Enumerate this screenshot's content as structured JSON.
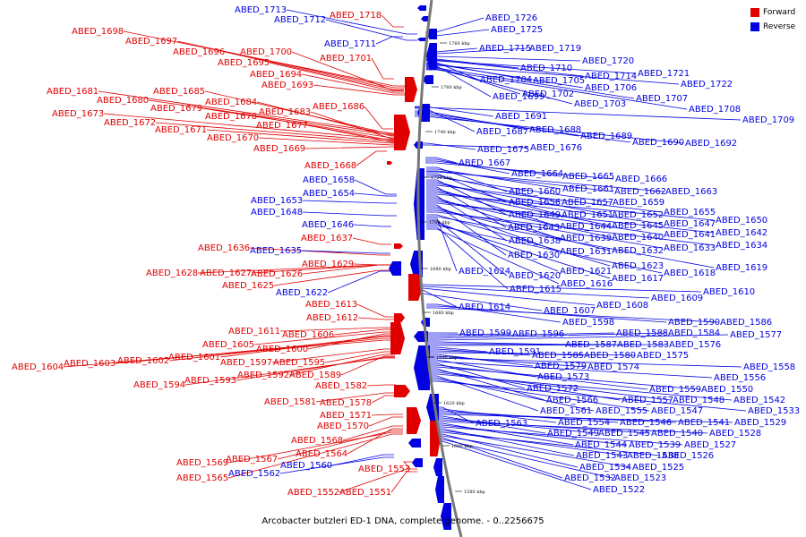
{
  "colors": {
    "forward": "#e00000",
    "reverse": "#0000e0",
    "backbone": "#777777"
  },
  "caption": "Arcobacter butzleri ED-1 DNA, complete genome. - 0..2256675",
  "legend": [
    {
      "label": "Forward",
      "color": "#e00000"
    },
    {
      "label": "Reverse",
      "color": "#0000e0"
    }
  ],
  "ticks": [
    "1760 kbp",
    "1760 kbp",
    "1740 kbp",
    "1720 kbp",
    "1700 kbp",
    "1680 kbp",
    "1660 kbp",
    "1640 kbp",
    "1620 kbp",
    "1600 kbp",
    "1580 kbp"
  ],
  "genes": [
    {
      "id": "ABED_1713",
      "strand": "reverse"
    },
    {
      "id": "ABED_1712",
      "strand": "reverse"
    },
    {
      "id": "ABED_1718",
      "strand": "forward"
    },
    {
      "id": "ABED_1698",
      "strand": "forward"
    },
    {
      "id": "ABED_1697",
      "strand": "forward"
    },
    {
      "id": "ABED_1711",
      "strand": "reverse"
    },
    {
      "id": "ABED_1696",
      "strand": "forward"
    },
    {
      "id": "ABED_1700",
      "strand": "forward"
    },
    {
      "id": "ABED_1695",
      "strand": "forward"
    },
    {
      "id": "ABED_1701",
      "strand": "forward"
    },
    {
      "id": "ABED_1694",
      "strand": "forward"
    },
    {
      "id": "ABED_1693",
      "strand": "forward"
    },
    {
      "id": "ABED_1681",
      "strand": "forward"
    },
    {
      "id": "ABED_1685",
      "strand": "forward"
    },
    {
      "id": "ABED_1680",
      "strand": "forward"
    },
    {
      "id": "ABED_1684",
      "strand": "forward"
    },
    {
      "id": "ABED_1686",
      "strand": "forward"
    },
    {
      "id": "ABED_1679",
      "strand": "forward"
    },
    {
      "id": "ABED_1683",
      "strand": "forward"
    },
    {
      "id": "ABED_1673",
      "strand": "forward"
    },
    {
      "id": "ABED_1678",
      "strand": "forward"
    },
    {
      "id": "ABED_1672",
      "strand": "forward"
    },
    {
      "id": "ABED_1677",
      "strand": "forward"
    },
    {
      "id": "ABED_1671",
      "strand": "forward"
    },
    {
      "id": "ABED_1670",
      "strand": "forward"
    },
    {
      "id": "ABED_1669",
      "strand": "forward"
    },
    {
      "id": "ABED_1668",
      "strand": "forward"
    },
    {
      "id": "ABED_1658",
      "strand": "reverse"
    },
    {
      "id": "ABED_1654",
      "strand": "reverse"
    },
    {
      "id": "ABED_1653",
      "strand": "reverse"
    },
    {
      "id": "ABED_1648",
      "strand": "reverse"
    },
    {
      "id": "ABED_1646",
      "strand": "reverse"
    },
    {
      "id": "ABED_1637",
      "strand": "forward"
    },
    {
      "id": "ABED_1636",
      "strand": "forward"
    },
    {
      "id": "ABED_1635",
      "strand": "reverse"
    },
    {
      "id": "ABED_1629",
      "strand": "forward"
    },
    {
      "id": "ABED_1628",
      "strand": "forward"
    },
    {
      "id": "ABED_1627",
      "strand": "forward"
    },
    {
      "id": "ABED_1626",
      "strand": "forward"
    },
    {
      "id": "ABED_1625",
      "strand": "forward"
    },
    {
      "id": "ABED_1622",
      "strand": "reverse"
    },
    {
      "id": "ABED_1613",
      "strand": "forward"
    },
    {
      "id": "ABED_1612",
      "strand": "forward"
    },
    {
      "id": "ABED_1611",
      "strand": "forward"
    },
    {
      "id": "ABED_1606",
      "strand": "forward"
    },
    {
      "id": "ABED_1605",
      "strand": "forward"
    },
    {
      "id": "ABED_1600",
      "strand": "forward"
    },
    {
      "id": "ABED_1601",
      "strand": "forward"
    },
    {
      "id": "ABED_1602",
      "strand": "forward"
    },
    {
      "id": "ABED_1603",
      "strand": "forward"
    },
    {
      "id": "ABED_1604",
      "strand": "forward"
    },
    {
      "id": "ABED_1597",
      "strand": "forward"
    },
    {
      "id": "ABED_1595",
      "strand": "forward"
    },
    {
      "id": "ABED_1592",
      "strand": "forward"
    },
    {
      "id": "ABED_1589",
      "strand": "forward"
    },
    {
      "id": "ABED_1593",
      "strand": "forward"
    },
    {
      "id": "ABED_1594",
      "strand": "forward"
    },
    {
      "id": "ABED_1582",
      "strand": "forward"
    },
    {
      "id": "ABED_1581",
      "strand": "forward"
    },
    {
      "id": "ABED_1578",
      "strand": "forward"
    },
    {
      "id": "ABED_1571",
      "strand": "forward"
    },
    {
      "id": "ABED_1570",
      "strand": "forward"
    },
    {
      "id": "ABED_1568",
      "strand": "forward"
    },
    {
      "id": "ABED_1564",
      "strand": "forward"
    },
    {
      "id": "ABED_1567",
      "strand": "forward"
    },
    {
      "id": "ABED_1569",
      "strand": "forward"
    },
    {
      "id": "ABED_1560",
      "strand": "reverse"
    },
    {
      "id": "ABED_1562",
      "strand": "reverse"
    },
    {
      "id": "ABED_1565",
      "strand": "forward"
    },
    {
      "id": "ABED_1553",
      "strand": "forward"
    },
    {
      "id": "ABED_1552",
      "strand": "forward"
    },
    {
      "id": "ABED_1551",
      "strand": "forward"
    },
    {
      "id": "ABED_1726",
      "strand": "reverse"
    },
    {
      "id": "ABED_1725",
      "strand": "reverse"
    },
    {
      "id": "ABED_1715",
      "strand": "reverse"
    },
    {
      "id": "ABED_1719",
      "strand": "reverse"
    },
    {
      "id": "ABED_1720",
      "strand": "reverse"
    },
    {
      "id": "ABED_1710",
      "strand": "reverse"
    },
    {
      "id": "ABED_1714",
      "strand": "reverse"
    },
    {
      "id": "ABED_1721",
      "strand": "reverse"
    },
    {
      "id": "ABED_1704",
      "strand": "reverse"
    },
    {
      "id": "ABED_1705",
      "strand": "reverse"
    },
    {
      "id": "ABED_1706",
      "strand": "reverse"
    },
    {
      "id": "ABED_1722",
      "strand": "reverse"
    },
    {
      "id": "ABED_1699",
      "strand": "reverse"
    },
    {
      "id": "ABED_1702",
      "strand": "reverse"
    },
    {
      "id": "ABED_1707",
      "strand": "reverse"
    },
    {
      "id": "ABED_1703",
      "strand": "reverse"
    },
    {
      "id": "ABED_1708",
      "strand": "reverse"
    },
    {
      "id": "ABED_1691",
      "strand": "reverse"
    },
    {
      "id": "ABED_1709",
      "strand": "reverse"
    },
    {
      "id": "ABED_1687",
      "strand": "reverse"
    },
    {
      "id": "ABED_1688",
      "strand": "reverse"
    },
    {
      "id": "ABED_1689",
      "strand": "reverse"
    },
    {
      "id": "ABED_1690",
      "strand": "reverse"
    },
    {
      "id": "ABED_1692",
      "strand": "reverse"
    },
    {
      "id": "ABED_1675",
      "strand": "reverse"
    },
    {
      "id": "ABED_1676",
      "strand": "reverse"
    },
    {
      "id": "ABED_1667",
      "strand": "reverse"
    },
    {
      "id": "ABED_1664",
      "strand": "reverse"
    },
    {
      "id": "ABED_1665",
      "strand": "reverse"
    },
    {
      "id": "ABED_1666",
      "strand": "reverse"
    },
    {
      "id": "ABED_1660",
      "strand": "reverse"
    },
    {
      "id": "ABED_1661",
      "strand": "reverse"
    },
    {
      "id": "ABED_1662",
      "strand": "reverse"
    },
    {
      "id": "ABED_1663",
      "strand": "reverse"
    },
    {
      "id": "ABED_1656",
      "strand": "reverse"
    },
    {
      "id": "ABED_1657",
      "strand": "reverse"
    },
    {
      "id": "ABED_1659",
      "strand": "reverse"
    },
    {
      "id": "ABED_1649",
      "strand": "reverse"
    },
    {
      "id": "ABED_1651",
      "strand": "reverse"
    },
    {
      "id": "ABED_1652",
      "strand": "reverse"
    },
    {
      "id": "ABED_1655",
      "strand": "reverse"
    },
    {
      "id": "ABED_1643",
      "strand": "reverse"
    },
    {
      "id": "ABED_1644",
      "strand": "reverse"
    },
    {
      "id": "ABED_1645",
      "strand": "reverse"
    },
    {
      "id": "ABED_1647",
      "strand": "reverse"
    },
    {
      "id": "ABED_1650",
      "strand": "reverse"
    },
    {
      "id": "ABED_1638",
      "strand": "reverse"
    },
    {
      "id": "ABED_1639",
      "strand": "reverse"
    },
    {
      "id": "ABED_1640",
      "strand": "reverse"
    },
    {
      "id": "ABED_1641",
      "strand": "reverse"
    },
    {
      "id": "ABED_1642",
      "strand": "reverse"
    },
    {
      "id": "ABED_1630",
      "strand": "reverse"
    },
    {
      "id": "ABED_1631",
      "strand": "reverse"
    },
    {
      "id": "ABED_1632",
      "strand": "reverse"
    },
    {
      "id": "ABED_1633",
      "strand": "reverse"
    },
    {
      "id": "ABED_1634",
      "strand": "reverse"
    },
    {
      "id": "ABED_1623",
      "strand": "reverse"
    },
    {
      "id": "ABED_1619",
      "strand": "reverse"
    },
    {
      "id": "ABED_1624",
      "strand": "reverse"
    },
    {
      "id": "ABED_1620",
      "strand": "reverse"
    },
    {
      "id": "ABED_1621",
      "strand": "reverse"
    },
    {
      "id": "ABED_1617",
      "strand": "reverse"
    },
    {
      "id": "ABED_1618",
      "strand": "reverse"
    },
    {
      "id": "ABED_1615",
      "strand": "reverse"
    },
    {
      "id": "ABED_1616",
      "strand": "reverse"
    },
    {
      "id": "ABED_1610",
      "strand": "reverse"
    },
    {
      "id": "ABED_1609",
      "strand": "reverse"
    },
    {
      "id": "ABED_1608",
      "strand": "reverse"
    },
    {
      "id": "ABED_1614",
      "strand": "reverse"
    },
    {
      "id": "ABED_1607",
      "strand": "reverse"
    },
    {
      "id": "ABED_1598",
      "strand": "reverse"
    },
    {
      "id": "ABED_1590",
      "strand": "reverse"
    },
    {
      "id": "ABED_1586",
      "strand": "reverse"
    },
    {
      "id": "ABED_1599",
      "strand": "reverse"
    },
    {
      "id": "ABED_1596",
      "strand": "reverse"
    },
    {
      "id": "ABED_1588",
      "strand": "reverse"
    },
    {
      "id": "ABED_1584",
      "strand": "reverse"
    },
    {
      "id": "ABED_1577",
      "strand": "reverse"
    },
    {
      "id": "ABED_1587",
      "strand": "reverse"
    },
    {
      "id": "ABED_1583",
      "strand": "reverse"
    },
    {
      "id": "ABED_1576",
      "strand": "reverse"
    },
    {
      "id": "ABED_1591",
      "strand": "reverse"
    },
    {
      "id": "ABED_1585",
      "strand": "reverse"
    },
    {
      "id": "ABED_1580",
      "strand": "reverse"
    },
    {
      "id": "ABED_1575",
      "strand": "reverse"
    },
    {
      "id": "ABED_1579",
      "strand": "reverse"
    },
    {
      "id": "ABED_1574",
      "strand": "reverse"
    },
    {
      "id": "ABED_1558",
      "strand": "reverse"
    },
    {
      "id": "ABED_1573",
      "strand": "reverse"
    },
    {
      "id": "ABED_1556",
      "strand": "reverse"
    },
    {
      "id": "ABED_1572",
      "strand": "reverse"
    },
    {
      "id": "ABED_1559",
      "strand": "reverse"
    },
    {
      "id": "ABED_1550",
      "strand": "reverse"
    },
    {
      "id": "ABED_1566",
      "strand": "reverse"
    },
    {
      "id": "ABED_1557",
      "strand": "reverse"
    },
    {
      "id": "ABED_1548",
      "strand": "reverse"
    },
    {
      "id": "ABED_1542",
      "strand": "reverse"
    },
    {
      "id": "ABED_1561",
      "strand": "reverse"
    },
    {
      "id": "ABED_1555",
      "strand": "reverse"
    },
    {
      "id": "ABED_1547",
      "strand": "reverse"
    },
    {
      "id": "ABED_1533",
      "strand": "reverse"
    },
    {
      "id": "ABED_1563",
      "strand": "reverse"
    },
    {
      "id": "ABED_1554",
      "strand": "reverse"
    },
    {
      "id": "ABED_1546",
      "strand": "reverse"
    },
    {
      "id": "ABED_1541",
      "strand": "reverse"
    },
    {
      "id": "ABED_1529",
      "strand": "reverse"
    },
    {
      "id": "ABED_1549",
      "strand": "reverse"
    },
    {
      "id": "ABED_1545",
      "strand": "reverse"
    },
    {
      "id": "ABED_1540",
      "strand": "reverse"
    },
    {
      "id": "ABED_1528",
      "strand": "reverse"
    },
    {
      "id": "ABED_1544",
      "strand": "reverse"
    },
    {
      "id": "ABED_1539",
      "strand": "reverse"
    },
    {
      "id": "ABED_1527",
      "strand": "reverse"
    },
    {
      "id": "ABED_1543",
      "strand": "reverse"
    },
    {
      "id": "ABED_1538",
      "strand": "reverse"
    },
    {
      "id": "ABED_1526",
      "strand": "reverse"
    },
    {
      "id": "ABED_1534",
      "strand": "reverse"
    },
    {
      "id": "ABED_1525",
      "strand": "reverse"
    },
    {
      "id": "ABED_1532",
      "strand": "reverse"
    },
    {
      "id": "ABED_1523",
      "strand": "reverse"
    },
    {
      "id": "ABED_1522",
      "strand": "reverse"
    }
  ]
}
